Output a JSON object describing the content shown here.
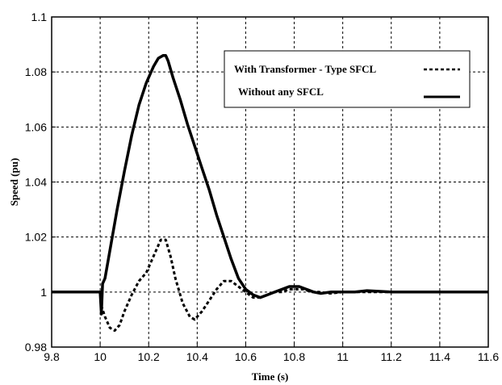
{
  "chart_data": {
    "type": "line",
    "title": "",
    "xlabel": "Time (s)",
    "ylabel": "Speed (pu)",
    "xlim": [
      9.8,
      11.6
    ],
    "ylim": [
      0.98,
      1.1
    ],
    "x_ticks": [
      "9.8",
      "10",
      "10.2",
      "10.4",
      "10.6",
      "10.8",
      "11",
      "11.2",
      "11.4",
      "11.6"
    ],
    "y_ticks": [
      "0.98",
      "1",
      "1.02",
      "1.04",
      "1.06",
      "1.08",
      "1.1"
    ],
    "grid": true,
    "legend_position": "top-right",
    "series": [
      {
        "name": "With Transformer - Type SFCL",
        "style": "dashed",
        "color": "#000000",
        "x": [
          9.8,
          10.0,
          10.005,
          10.02,
          10.04,
          10.06,
          10.08,
          10.1,
          10.13,
          10.16,
          10.19,
          10.21,
          10.23,
          10.25,
          10.27,
          10.29,
          10.31,
          10.34,
          10.37,
          10.39,
          10.42,
          10.45,
          10.48,
          10.51,
          10.54,
          10.57,
          10.6,
          10.63,
          10.66,
          10.69,
          10.72,
          10.75,
          10.78,
          10.81,
          10.84,
          10.87,
          10.9,
          10.95,
          11.0,
          11.05,
          11.1,
          11.2,
          11.3,
          11.4,
          11.5,
          11.6
        ],
        "y": [
          1.0,
          1.0,
          0.995,
          0.991,
          0.987,
          0.986,
          0.988,
          0.993,
          0.999,
          1.004,
          1.007,
          1.011,
          1.015,
          1.019,
          1.019,
          1.013,
          1.005,
          0.996,
          0.991,
          0.99,
          0.993,
          0.997,
          1.001,
          1.004,
          1.004,
          1.002,
          1.0,
          0.998,
          0.998,
          0.999,
          1.0,
          1.0,
          1.001,
          1.001,
          1.001,
          1.0,
          1.0,
          0.9995,
          1.0,
          1.0,
          1.0,
          1.0,
          1.0,
          1.0,
          1.0,
          1.0
        ]
      },
      {
        "name": "Without any SFCL",
        "style": "solid",
        "color": "#000000",
        "x": [
          9.8,
          10.0,
          10.005,
          10.01,
          10.02,
          10.03,
          10.05,
          10.07,
          10.1,
          10.13,
          10.16,
          10.19,
          10.22,
          10.24,
          10.26,
          10.27,
          10.28,
          10.3,
          10.33,
          10.36,
          10.39,
          10.42,
          10.45,
          10.48,
          10.51,
          10.54,
          10.57,
          10.6,
          10.63,
          10.66,
          10.69,
          10.72,
          10.75,
          10.78,
          10.8,
          10.82,
          10.85,
          10.88,
          10.91,
          10.95,
          11.0,
          11.05,
          11.1,
          11.2,
          11.3,
          11.4,
          11.5,
          11.6
        ],
        "y": [
          1.0,
          1.0,
          0.992,
          1.003,
          1.005,
          1.01,
          1.02,
          1.03,
          1.044,
          1.057,
          1.068,
          1.076,
          1.082,
          1.085,
          1.086,
          1.086,
          1.084,
          1.078,
          1.07,
          1.061,
          1.053,
          1.045,
          1.037,
          1.028,
          1.02,
          1.012,
          1.005,
          1.001,
          0.999,
          0.998,
          0.999,
          1.0,
          1.001,
          1.002,
          1.002,
          1.002,
          1.001,
          1.0,
          0.9995,
          1.0,
          1.0,
          1.0,
          1.0005,
          1.0,
          1.0,
          1.0,
          1.0,
          1.0
        ]
      }
    ]
  }
}
